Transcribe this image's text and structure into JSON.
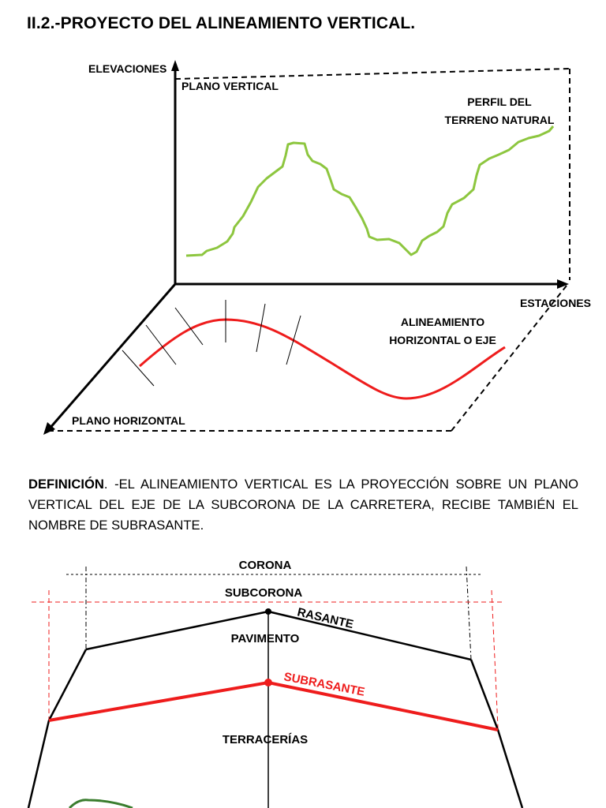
{
  "title": "II.2.-PROYECTO DEL ALINEAMIENTO VERTICAL.",
  "figure1": {
    "elevaciones": "ELEVACIONES",
    "plano_vertical": "PLANO VERTICAL",
    "perfil_line1": "PERFIL DEL",
    "perfil_line2": "TERRENO NATURAL",
    "estaciones": "ESTACIONES",
    "alineamiento_line1": "ALINEAMIENTO",
    "alineamiento_line2": "HORIZONTAL O EJE",
    "plano_horizontal": "PLANO HORIZONTAL",
    "colors": {
      "terrain": "#8dc63f",
      "alignment": "#ee1c1c",
      "axis": "#000000"
    }
  },
  "definition": {
    "lead": "DEFINICIÓN",
    "body": ". -EL ALINEAMIENTO VERTICAL ES LA PROYECCIÓN SOBRE UN PLANO VERTICAL DEL EJE DE LA SUBCORONA DE LA CARRETERA, RECIBE TAMBIÉN EL NOMBRE DE SUBRASANTE."
  },
  "figure2": {
    "corona": "CORONA",
    "subcorona": "SUBCORONA",
    "rasante": "RASANTE",
    "pavimento": "PAVIMENTO",
    "subrasante": "SUBRASANTE",
    "terracerias": "TERRACERÍAS",
    "colors": {
      "subrasante": "#ee1c1c",
      "outline": "#000000",
      "ground": "#3a7d2e"
    }
  }
}
